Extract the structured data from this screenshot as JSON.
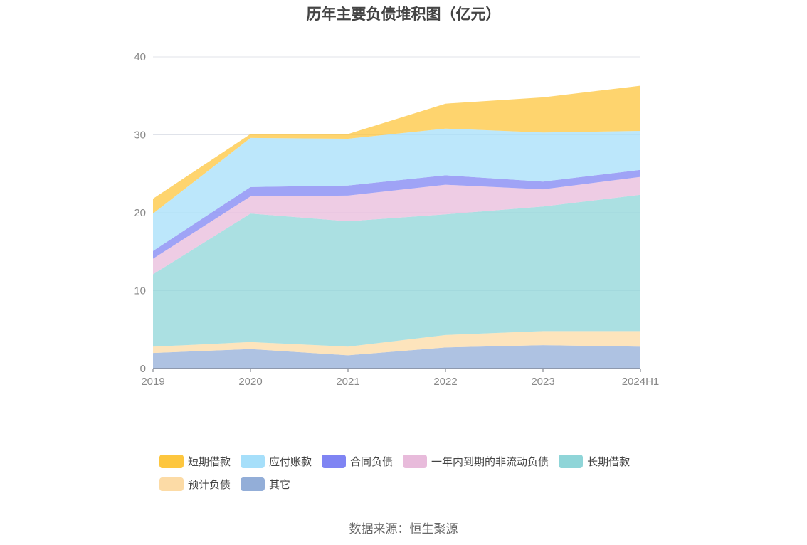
{
  "chart_data": {
    "type": "area",
    "stacked": true,
    "title": "历年主要负债堆积图（亿元）",
    "xlabel": "",
    "ylabel": "",
    "categories": [
      "2019",
      "2020",
      "2021",
      "2022",
      "2023",
      "2024H1"
    ],
    "ylim": [
      0,
      40
    ],
    "yticks": [
      "0",
      "10",
      "20",
      "30",
      "40"
    ],
    "grid": true,
    "legend_position": "bottom",
    "series": [
      {
        "name": "其它",
        "color": "#93aed8",
        "values": [
          2.0,
          2.5,
          1.7,
          2.7,
          3.0,
          2.8
        ]
      },
      {
        "name": "预计负债",
        "color": "#fcdba6",
        "values": [
          0.8,
          0.9,
          1.1,
          1.6,
          1.8,
          2.0
        ]
      },
      {
        "name": "长期借款",
        "color": "#8fd5d8",
        "values": [
          9.3,
          16.5,
          16.1,
          15.5,
          16.0,
          17.5
        ]
      },
      {
        "name": "一年内到期的非流动负债",
        "color": "#e8bbdb",
        "values": [
          2.0,
          2.2,
          3.3,
          3.8,
          2.2,
          2.3
        ]
      },
      {
        "name": "合同负债",
        "color": "#7f84f3",
        "values": [
          1.0,
          1.2,
          1.3,
          1.2,
          1.0,
          0.9
        ]
      },
      {
        "name": "应付账款",
        "color": "#a6dffa",
        "values": [
          4.8,
          6.3,
          6.0,
          6.0,
          6.3,
          5.0
        ]
      },
      {
        "name": "短期借款",
        "color": "#fdc63e",
        "values": [
          1.9,
          0.5,
          0.6,
          3.2,
          4.5,
          5.8
        ]
      }
    ]
  },
  "legend": {
    "row1": [
      {
        "label": "短期借款",
        "color": "#fdc63e"
      },
      {
        "label": "应付账款",
        "color": "#a6dffa"
      },
      {
        "label": "合同负债",
        "color": "#7f84f3"
      },
      {
        "label": "一年内到期的非流动负债",
        "color": "#e8bbdb"
      },
      {
        "label": "长期借款",
        "color": "#8fd5d8"
      }
    ],
    "row2": [
      {
        "label": "预计负债",
        "color": "#fcdba6"
      },
      {
        "label": "其它",
        "color": "#93aed8"
      }
    ]
  },
  "source": "数据来源：恒生聚源"
}
